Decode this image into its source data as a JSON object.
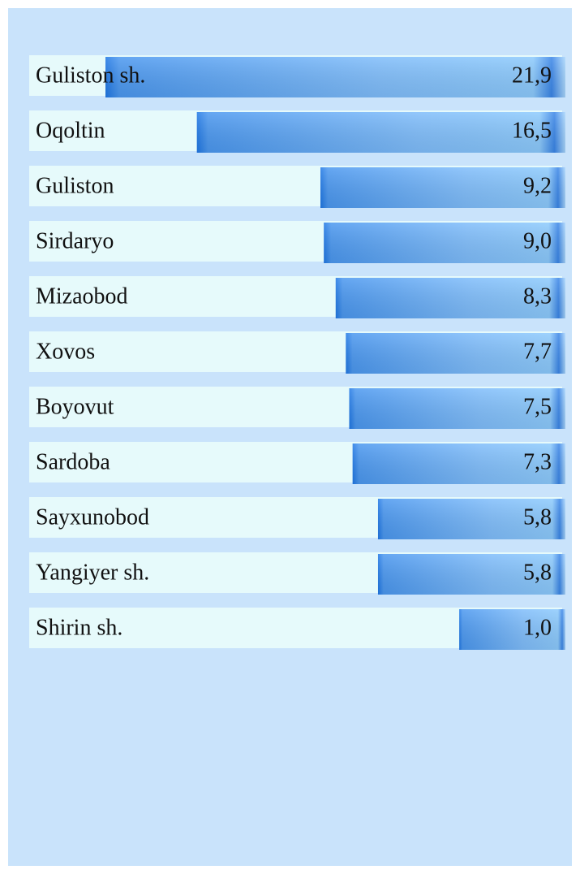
{
  "chart_data": {
    "type": "bar",
    "orientation": "horizontal",
    "categories": [
      "Guliston sh.",
      "Oqoltin",
      "Guliston",
      "Sirdaryo",
      "Mizaobod",
      "Xovos",
      "Boyovut",
      "Sardoba",
      "Sayxunobod",
      "Yangiyer sh.",
      "Shirin sh."
    ],
    "values": [
      21.9,
      16.5,
      9.2,
      9.0,
      8.3,
      7.7,
      7.5,
      7.3,
      5.8,
      5.8,
      1.0
    ],
    "value_labels": [
      "21,9",
      "16,5",
      "9,2",
      "9,0",
      "8,3",
      "7,7",
      "7,5",
      "7,3",
      "5,8",
      "5,8",
      "1,0"
    ],
    "color": "#6aaef6"
  }
}
